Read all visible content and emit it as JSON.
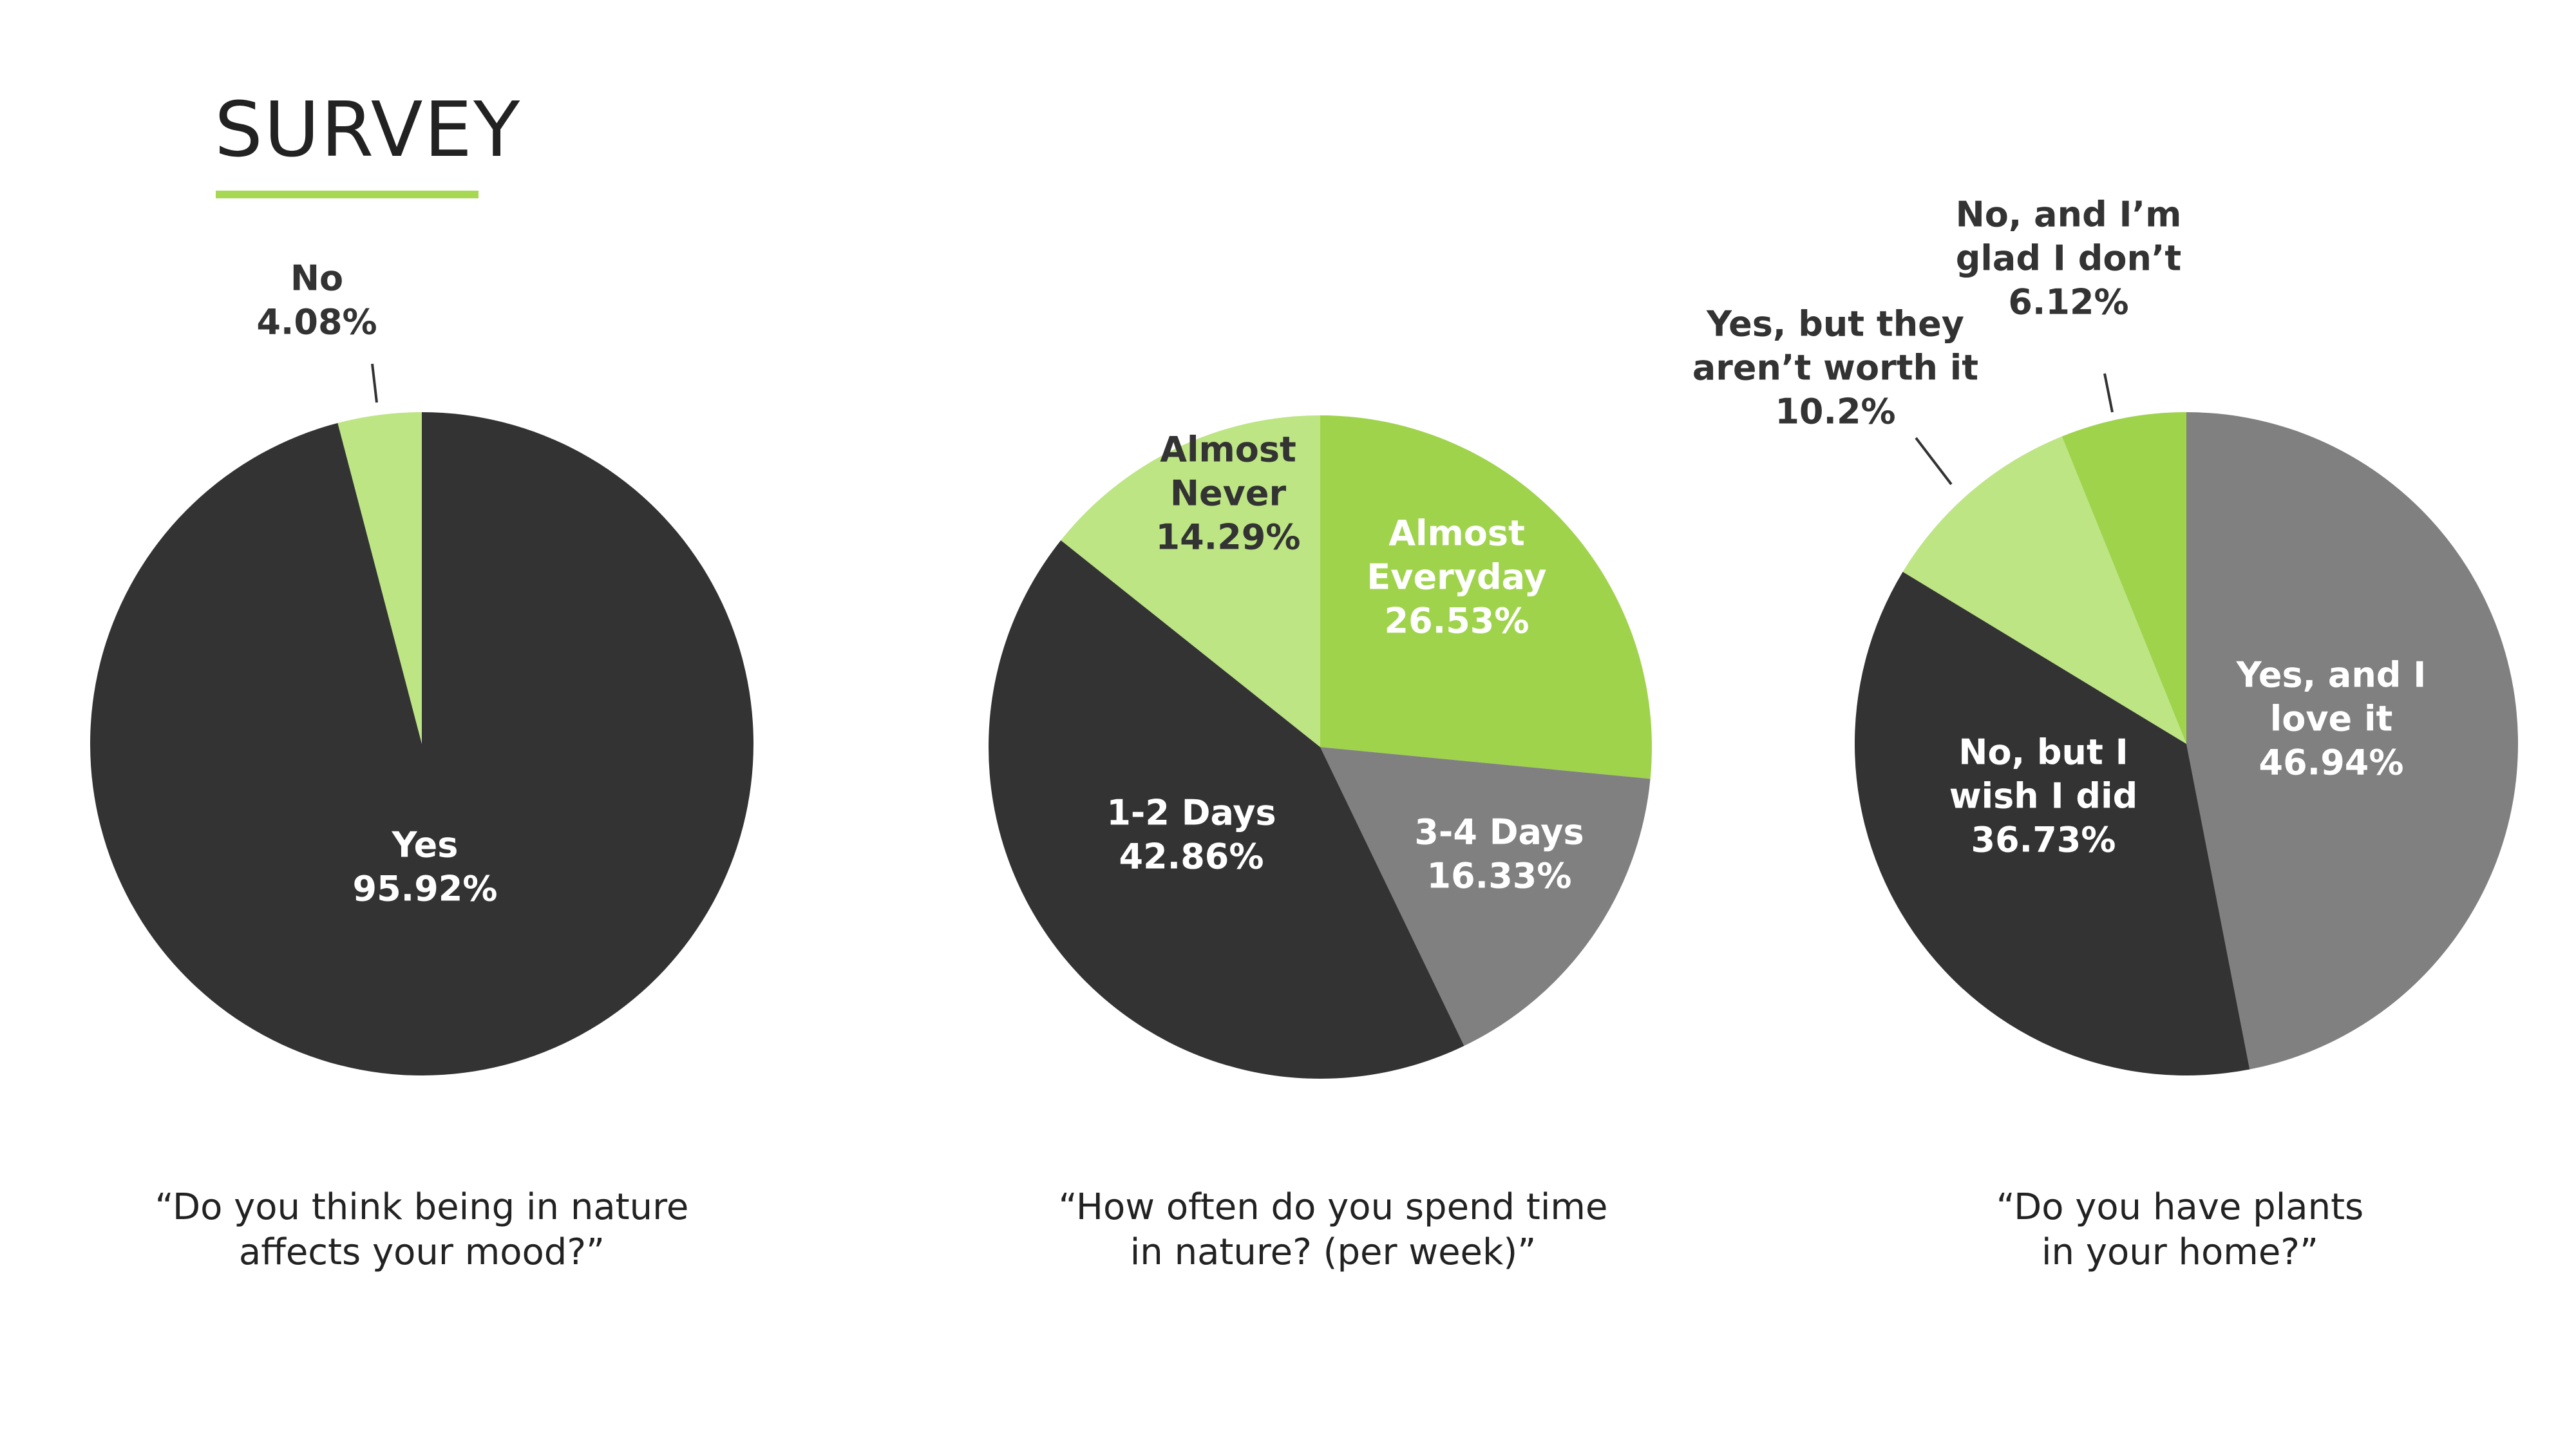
{
  "page": {
    "title": "SURVEY"
  },
  "chart_data": [
    {
      "type": "pie",
      "title": "“Do you think being in nature affects your mood?”",
      "question_lines": [
        "“Do you think being in nature",
        "affects your mood?”"
      ],
      "slices": [
        {
          "name": "Yes",
          "value": 95.92,
          "value_label": "95.92%",
          "label_lines": [
            "Yes"
          ],
          "color": "#333333"
        },
        {
          "name": "No",
          "value": 4.08,
          "value_label": "4.08%",
          "label_lines": [
            "No"
          ],
          "color": "#bde584"
        }
      ]
    },
    {
      "type": "pie",
      "title": "“How often do you spend time in nature? (per week)”",
      "question_lines": [
        "“How often do you spend time",
        "in nature? (per week)”"
      ],
      "slices": [
        {
          "name": "Almost Everyday",
          "value": 26.53,
          "value_label": "26.53%",
          "label_lines": [
            "Almost",
            "Everyday"
          ],
          "color": "#9fd34c"
        },
        {
          "name": "3-4 Days",
          "value": 16.33,
          "value_label": "16.33%",
          "label_lines": [
            "3-4 Days"
          ],
          "color": "#808080"
        },
        {
          "name": "1-2 Days",
          "value": 42.86,
          "value_label": "42.86%",
          "label_lines": [
            "1-2 Days"
          ],
          "color": "#333333"
        },
        {
          "name": "Almost Never",
          "value": 14.29,
          "value_label": "14.29%",
          "label_lines": [
            "Almost",
            "Never"
          ],
          "color": "#bde584"
        }
      ]
    },
    {
      "type": "pie",
      "title": "“Do you have plants in your home?”",
      "question_lines": [
        "“Do you have plants",
        "in your home?”"
      ],
      "slices": [
        {
          "name": "Yes, and I love it",
          "value": 46.94,
          "value_label": "46.94%",
          "label_lines": [
            "Yes, and I",
            "love it"
          ],
          "color": "#808080"
        },
        {
          "name": "No, but I wish I did",
          "value": 36.73,
          "value_label": "36.73%",
          "label_lines": [
            "No, but I",
            "wish I did"
          ],
          "color": "#333333"
        },
        {
          "name": "Yes, but they aren’t worth it",
          "value": 10.2,
          "value_label": "10.2%",
          "label_lines": [
            "Yes, but they",
            "aren’t worth it"
          ],
          "color": "#bde584"
        },
        {
          "name": "No, and I’m glad I don’t",
          "value": 6.12,
          "value_label": "6.12%",
          "label_lines": [
            "No, and I’m",
            "glad I don’t"
          ],
          "color": "#9fd34c"
        }
      ]
    }
  ]
}
